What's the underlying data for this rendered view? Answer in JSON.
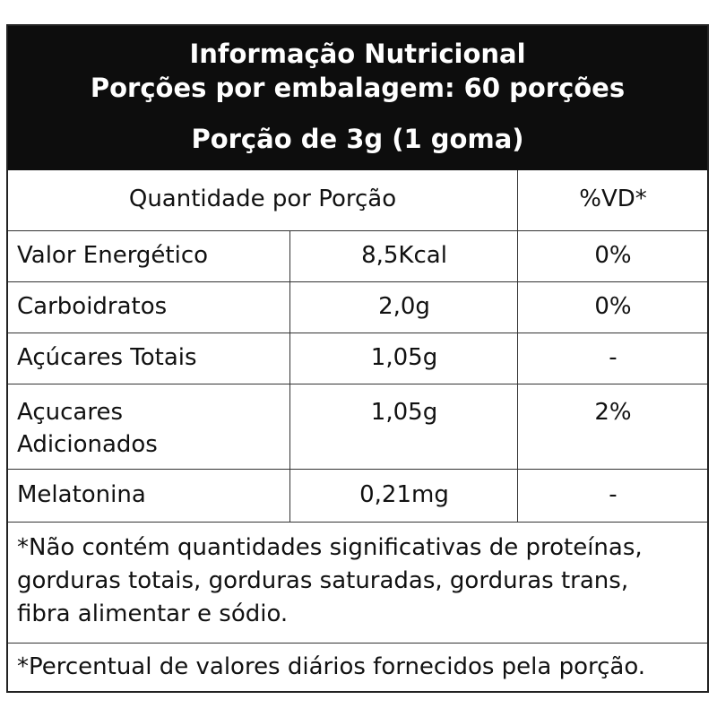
{
  "header": {
    "title": "Informação Nutricional",
    "servings_per_package": "Porções por embalagem: 60 porções",
    "serving_size": "Porção de 3g (1 goma)"
  },
  "table": {
    "column_headers": {
      "quantity": "Quantidade por Porção",
      "dv": "%VD*"
    },
    "rows": [
      {
        "nutrient": "Valor Energético",
        "amount": "8,5Kcal",
        "dv": "0%"
      },
      {
        "nutrient": "Carboidratos",
        "amount": "2,0g",
        "dv": "0%"
      },
      {
        "nutrient": "Açúcares Totais",
        "amount": "1,05g",
        "dv": "-"
      },
      {
        "nutrient_line1": "Açucares",
        "nutrient_line2": "Adicionados",
        "amount": "1,05g",
        "dv": "2%"
      },
      {
        "nutrient": "Melatonina",
        "amount": "0,21mg",
        "dv": "-"
      }
    ]
  },
  "footnotes": {
    "not_significant_line1": "*Não contém quantidades significativas de proteínas,",
    "not_significant_line2": "gorduras totais, gorduras saturadas, gorduras trans,",
    "not_significant_line3": "fibra alimentar e sódio.",
    "daily_values": "*Percentual de valores diários fornecidos pela porção."
  }
}
